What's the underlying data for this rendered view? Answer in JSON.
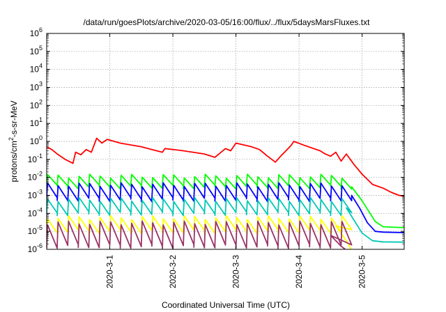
{
  "chart_data": {
    "type": "line",
    "title": "/data/run/goesPlots/archive/2020-03-05/16:00/flux/../flux/5daysMarsFluxes.txt",
    "xlabel": "Coordinated Universal Time (UTC)",
    "ylabel_parts": [
      "protons/cm",
      "2",
      "-s-sr-MeV"
    ],
    "xlim": [
      "2020-02-29T00:00",
      "2020-03-05T16:00"
    ],
    "ylim": [
      1e-06,
      1000000.0
    ],
    "yscale": "log",
    "grid": true,
    "x_ticks": [
      "2020-3-1",
      "2020-3-2",
      "2020-3-3",
      "2020-3-4",
      "2020-3-5"
    ],
    "y_tick_base": "10",
    "y_tick_exponents": [
      "-6",
      "-5",
      "-4",
      "-3",
      "-2",
      "-1",
      "0",
      "1",
      "2",
      "3",
      "4",
      "5",
      "6"
    ],
    "series": [
      {
        "color": "#ff0000",
        "points": [
          [
            "2020-02-29T00:00",
            0.5
          ],
          [
            "2020-02-29T02:00",
            0.35
          ],
          [
            "2020-02-29T04:00",
            0.2
          ],
          [
            "2020-02-29T07:00",
            0.1
          ],
          [
            "2020-02-29T10:00",
            0.06
          ],
          [
            "2020-02-29T11:00",
            0.25
          ],
          [
            "2020-02-29T13:00",
            0.18
          ],
          [
            "2020-02-29T15:00",
            0.35
          ],
          [
            "2020-02-29T17:00",
            0.25
          ],
          [
            "2020-02-29T19:00",
            1.5
          ],
          [
            "2020-02-29T21:00",
            0.8
          ],
          [
            "2020-02-29T23:00",
            1.3
          ],
          [
            "2020-03-01T04:00",
            0.8
          ],
          [
            "2020-03-01T12:00",
            0.5
          ],
          [
            "2020-03-01T20:00",
            0.25
          ],
          [
            "2020-03-01T21:00",
            0.4
          ],
          [
            "2020-03-02T04:00",
            0.3
          ],
          [
            "2020-03-02T12:00",
            0.2
          ],
          [
            "2020-03-02T16:00",
            0.13
          ],
          [
            "2020-03-02T20:00",
            0.4
          ],
          [
            "2020-03-02T22:00",
            0.3
          ],
          [
            "2020-03-03T00:00",
            0.8
          ],
          [
            "2020-03-03T06:00",
            0.5
          ],
          [
            "2020-03-03T09:00",
            0.35
          ],
          [
            "2020-03-03T12:00",
            0.15
          ],
          [
            "2020-03-03T15:00",
            0.07
          ],
          [
            "2020-03-03T17:00",
            0.15
          ],
          [
            "2020-03-03T19:00",
            0.3
          ],
          [
            "2020-03-03T21:00",
            0.6
          ],
          [
            "2020-03-03T22:00",
            1.0
          ],
          [
            "2020-03-04T02:00",
            0.6
          ],
          [
            "2020-03-04T08:00",
            0.3
          ],
          [
            "2020-03-04T10:00",
            0.2
          ],
          [
            "2020-03-04T12:00",
            0.15
          ],
          [
            "2020-03-04T14:00",
            0.25
          ],
          [
            "2020-03-04T16:00",
            0.08
          ],
          [
            "2020-03-04T18:00",
            0.2
          ],
          [
            "2020-03-04T21:00",
            0.05
          ],
          [
            "2020-03-05T00:00",
            0.015
          ],
          [
            "2020-03-05T04:00",
            0.004
          ],
          [
            "2020-03-05T08:00",
            0.0025
          ],
          [
            "2020-03-05T11:00",
            0.0015
          ],
          [
            "2020-03-05T14:00",
            0.001
          ],
          [
            "2020-03-05T16:00",
            0.0009
          ]
        ]
      },
      {
        "color": "#00ff00",
        "peaks": 0.012,
        "troughs": 0.003,
        "decay": [
          [
            "2020-03-04T20:00",
            0.003
          ],
          [
            "2020-03-05T00:00",
            0.0005
          ],
          [
            "2020-03-05T03:00",
            0.0001
          ],
          [
            "2020-03-05T05:00",
            3.5e-05
          ],
          [
            "2020-03-05T08:00",
            1.8e-05
          ],
          [
            "2020-03-05T16:00",
            1.6e-05
          ]
        ]
      },
      {
        "color": "#0000ff",
        "peaks": 0.004,
        "troughs": 0.0006,
        "decay": [
          [
            "2020-03-04T20:00",
            0.001
          ],
          [
            "2020-03-04T23:00",
            0.0002
          ],
          [
            "2020-03-05T02:00",
            3e-05
          ],
          [
            "2020-03-05T05:00",
            1e-05
          ],
          [
            "2020-03-05T08:00",
            9e-06
          ],
          [
            "2020-03-05T16:00",
            8.5e-06
          ]
        ]
      },
      {
        "color": "#00c8b4",
        "peaks": 0.0006,
        "troughs": 0.0001,
        "decay": [
          [
            "2020-03-04T18:00",
            0.0002
          ],
          [
            "2020-03-04T21:00",
            4e-05
          ],
          [
            "2020-03-05T00:00",
            8e-06
          ],
          [
            "2020-03-05T04:00",
            3e-06
          ],
          [
            "2020-03-05T08:00",
            2.6e-06
          ],
          [
            "2020-03-05T16:00",
            2.5e-06
          ]
        ]
      },
      {
        "color": "#ffff00",
        "peaks": 6e-05,
        "troughs": 1e-05,
        "decay": [
          [
            "2020-03-04T14:00",
            2e-05
          ],
          [
            "2020-03-04T18:00",
            3e-06
          ],
          [
            "2020-03-04T20:00",
            9e-07
          ]
        ]
      },
      {
        "color": "#993366",
        "peaks": 3e-05,
        "troughs": 1.5e-06,
        "decay": [
          [
            "2020-03-04T12:00",
            6e-06
          ],
          [
            "2020-03-04T16:00",
            1.5e-06
          ],
          [
            "2020-03-04T18:00",
            9e-07
          ]
        ]
      }
    ],
    "sawtooth_period_hours": 4,
    "sawtooth_end": "2020-03-04T18:00"
  }
}
